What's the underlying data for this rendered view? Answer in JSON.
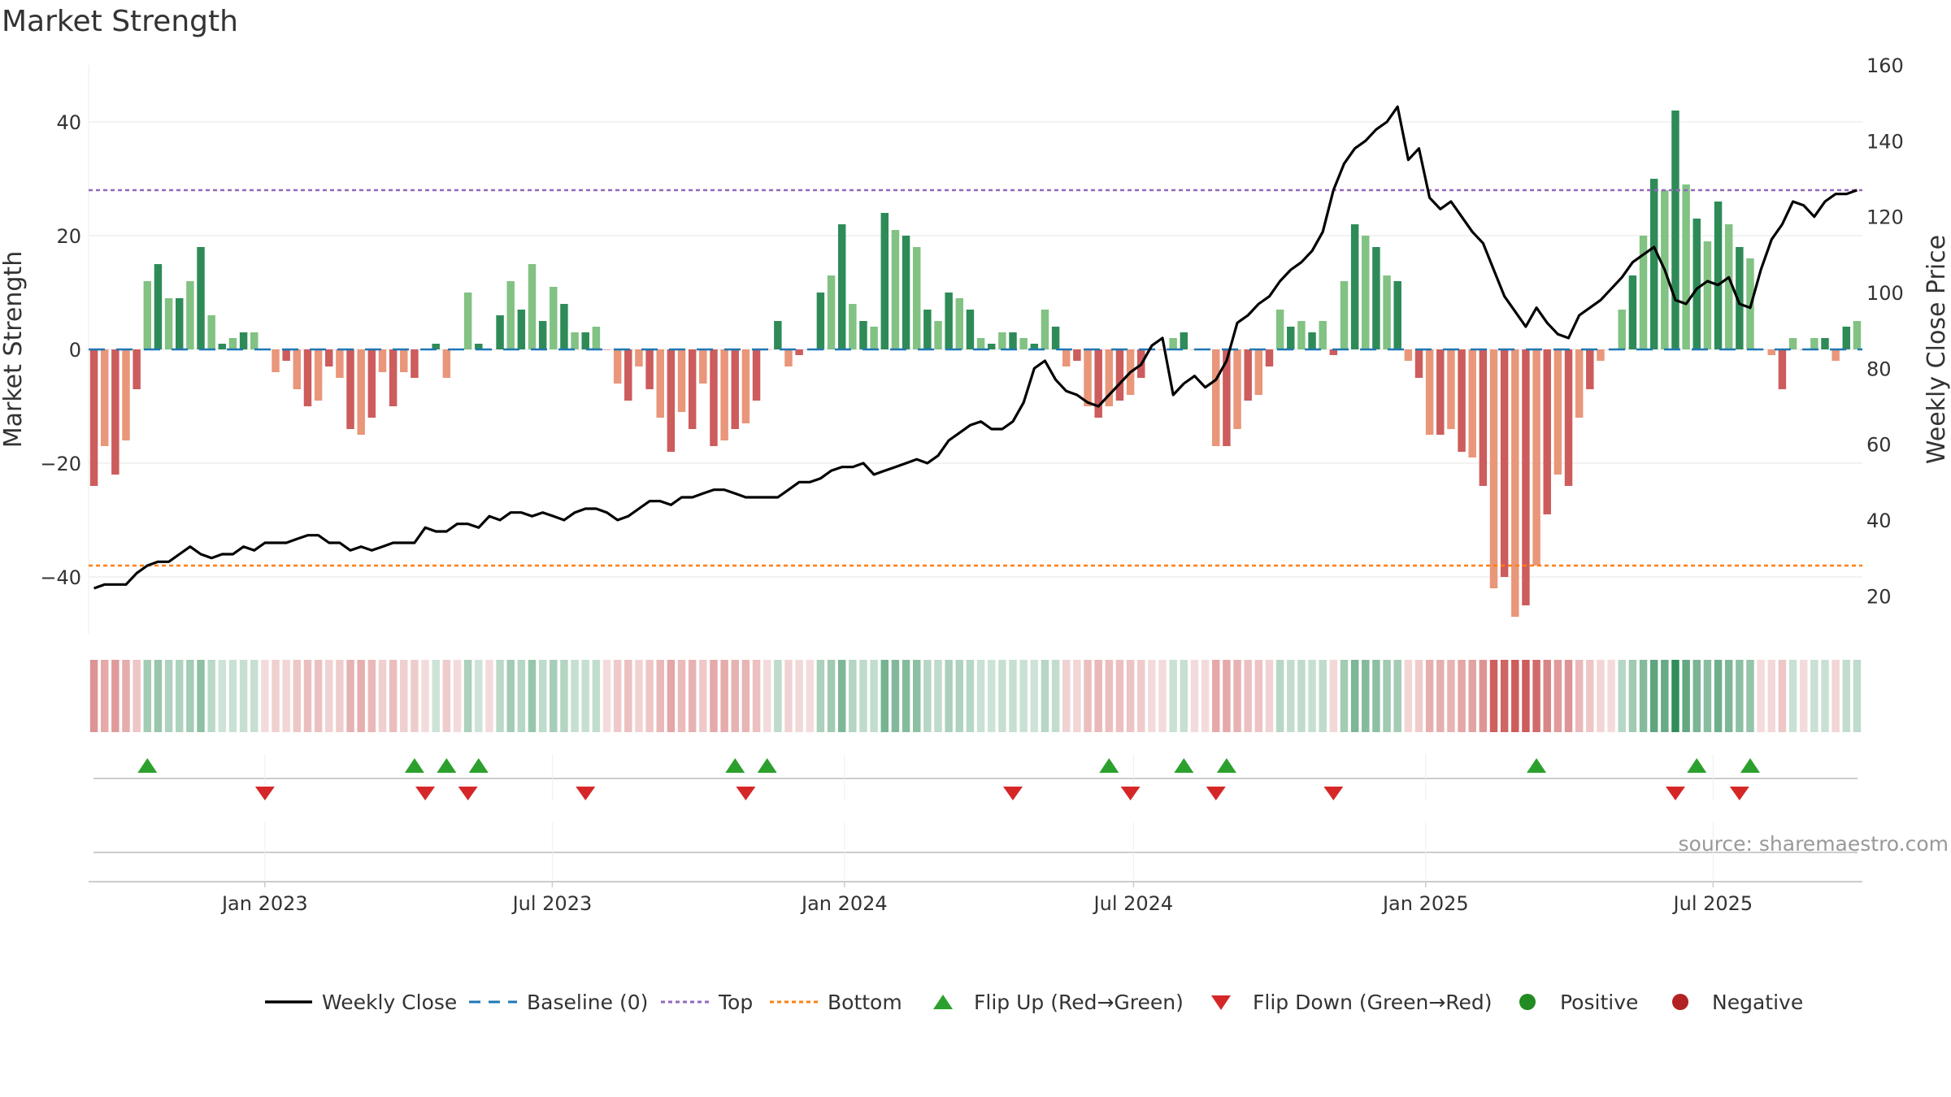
{
  "chart_data": {
    "type": "bar",
    "title": "Market Strength",
    "ylabel": "Market Strength",
    "y2label": "Weekly Close Price",
    "ylim": [
      -50,
      50
    ],
    "y2lim": [
      10,
      160
    ],
    "yticks": [
      40,
      20,
      0,
      -20,
      -40
    ],
    "yticks_labels": [
      "40",
      "20",
      "0",
      "−20",
      "−40"
    ],
    "y2ticks": [
      160,
      140,
      120,
      100,
      80,
      60,
      40,
      20
    ],
    "x_start": "2022-09-12",
    "x_end": "2025-10-03",
    "x_ticks": [
      {
        "date": "2023-01-01",
        "label": "Jan 2023"
      },
      {
        "date": "2023-07-01",
        "label": "Jul 2023"
      },
      {
        "date": "2024-01-01",
        "label": "Jan 2024"
      },
      {
        "date": "2024-07-01",
        "label": "Jul 2024"
      },
      {
        "date": "2025-01-01",
        "label": "Jan 2025"
      },
      {
        "date": "2025-07-01",
        "label": "Jul 2025"
      }
    ],
    "top_line": 28,
    "bottom_line": -38,
    "strength": [
      -24,
      -17,
      -22,
      -16,
      -7,
      12,
      15,
      9,
      9,
      12,
      18,
      6,
      1,
      2,
      3,
      3,
      0,
      -4,
      -2,
      -7,
      -10,
      -9,
      -3,
      -5,
      -14,
      -15,
      -12,
      -4,
      -10,
      -4,
      -5,
      0,
      1,
      -5,
      0,
      10,
      1,
      0,
      6,
      12,
      7,
      15,
      5,
      11,
      8,
      3,
      3,
      4,
      0,
      -6,
      -9,
      -3,
      -7,
      -12,
      -18,
      -11,
      -14,
      -6,
      -17,
      -16,
      -14,
      -13,
      -9,
      0,
      5,
      -3,
      -1,
      0,
      10,
      13,
      22,
      8,
      5,
      4,
      24,
      21,
      20,
      18,
      7,
      5,
      10,
      9,
      7,
      2,
      1,
      3,
      3,
      2,
      1,
      7,
      4,
      -3,
      -2,
      -10,
      -12,
      -10,
      -9,
      -8,
      -5,
      0,
      0,
      2,
      3,
      0,
      0,
      -17,
      -17,
      -14,
      -9,
      -8,
      -3,
      7,
      4,
      5,
      3,
      5,
      -1,
      12,
      22,
      20,
      18,
      13,
      12,
      -2,
      -5,
      -15,
      -15,
      -14,
      -18,
      -19,
      -24,
      -42,
      -40,
      -47,
      -45,
      -38,
      -29,
      -22,
      -24,
      -12,
      -7,
      -2,
      0,
      7,
      13,
      20,
      30,
      28,
      42,
      29,
      23,
      19,
      26,
      22,
      18,
      16,
      0,
      -1,
      -7,
      2,
      0,
      2,
      2,
      -2,
      4,
      5
    ],
    "close": [
      22,
      23,
      23,
      23,
      26,
      28,
      29,
      29,
      31,
      33,
      31,
      30,
      31,
      31,
      33,
      32,
      34,
      34,
      34,
      35,
      36,
      36,
      34,
      34,
      32,
      33,
      32,
      33,
      34,
      34,
      34,
      38,
      37,
      37,
      39,
      39,
      38,
      41,
      40,
      42,
      42,
      41,
      42,
      41,
      40,
      42,
      43,
      43,
      42,
      40,
      41,
      43,
      45,
      45,
      44,
      46,
      46,
      47,
      48,
      48,
      47,
      46,
      46,
      46,
      46,
      48,
      50,
      50,
      51,
      53,
      54,
      54,
      55,
      52,
      53,
      54,
      55,
      56,
      55,
      57,
      61,
      63,
      65,
      66,
      64,
      64,
      66,
      71,
      80,
      82,
      77,
      74,
      73,
      71,
      70,
      73,
      76,
      79,
      81,
      86,
      88,
      73,
      76,
      78,
      75,
      77,
      82,
      92,
      94,
      97,
      99,
      103,
      106,
      108,
      111,
      116,
      127,
      134,
      138,
      140,
      143,
      145,
      149,
      135,
      138,
      125,
      122,
      124,
      120,
      116,
      113,
      106,
      99,
      95,
      91,
      96,
      92,
      89,
      88,
      94,
      96,
      98,
      101,
      104,
      108,
      110,
      112,
      106,
      98,
      97,
      101,
      103,
      102,
      104,
      97,
      96,
      106,
      114,
      118,
      124,
      123,
      120,
      124,
      126,
      126,
      127
    ],
    "flip_up_weeks": [
      5,
      30,
      33,
      36,
      60,
      63,
      95,
      102,
      106,
      135,
      150,
      155
    ],
    "flip_down_weeks": [
      16,
      31,
      35,
      46,
      61,
      86,
      97,
      105,
      116,
      148,
      154
    ],
    "legend": [
      "Weekly Close",
      "Baseline (0)",
      "Top",
      "Bottom",
      "Flip Up (Red→Green)",
      "Flip Down (Green→Red)",
      "Positive",
      "Negative"
    ],
    "source": "source: sharemaestro.com",
    "colors": {
      "pos_strong": "#2e8b57",
      "pos_light": "#82c283",
      "neg_strong": "#cd5c5c",
      "neg_light": "#e9967a",
      "close": "#000000",
      "baseline": "#1f77b4",
      "top": "#9467bd",
      "bottom": "#ff7f0e",
      "flip_up": "#2ca02c",
      "flip_down": "#d62728",
      "positive_dot": "#228b22",
      "negative_dot": "#b22222",
      "grid": "#e6e6e6",
      "axis": "#cccccc"
    }
  }
}
